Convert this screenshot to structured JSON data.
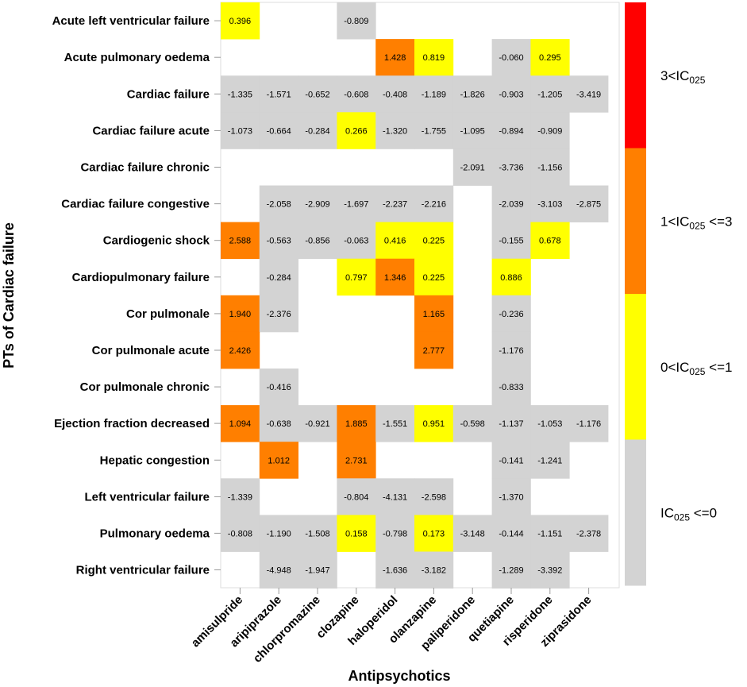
{
  "chart_data": {
    "type": "heatmap",
    "xlabel": "Antipsychotics",
    "ylabel": "PTs of Cardiac failure",
    "columns": [
      "amisulpride",
      "aripiprazole",
      "chlorpromazine",
      "clozapine",
      "haloperidol",
      "olanzapine",
      "paliperidone",
      "quetiapine",
      "risperidone",
      "ziprasidone"
    ],
    "rows": [
      "Acute left ventricular failure",
      "Acute pulmonary oedema",
      "Cardiac failure",
      "Cardiac failure acute",
      "Cardiac failure chronic",
      "Cardiac failure congestive",
      "Cardiogenic shock",
      "Cardiopulmonary failure",
      "Cor pulmonale",
      "Cor pulmonale acute",
      "Cor pulmonale chronic",
      "Ejection fraction decreased",
      "Hepatic congestion",
      "Left ventricular failure",
      "Pulmonary oedema",
      "Right ventricular failure"
    ],
    "values": [
      [
        "0.396",
        null,
        null,
        "-0.809",
        null,
        null,
        null,
        null,
        null,
        null
      ],
      [
        null,
        null,
        null,
        null,
        "1.428",
        "0.819",
        null,
        "-0.060",
        "0.295",
        null
      ],
      [
        "-1.335",
        "-1.571",
        "-0.652",
        "-0.608",
        "-0.408",
        "-1.189",
        "-1.826",
        "-0.903",
        "-1.205",
        "-3.419"
      ],
      [
        "-1.073",
        "-0.664",
        "-0.284",
        "0.266",
        "-1.320",
        "-1.755",
        "-1.095",
        "-0.894",
        "-0.909",
        null
      ],
      [
        null,
        null,
        null,
        null,
        null,
        null,
        "-2.091",
        "-3.736",
        "-1.156",
        null
      ],
      [
        null,
        "-2.058",
        "-2.909",
        "-1.697",
        "-2.237",
        "-2.216",
        null,
        "-2.039",
        "-3.103",
        "-2.875"
      ],
      [
        "2.588",
        "-0.563",
        "-0.856",
        "-0.063",
        "0.416",
        "0.225",
        null,
        "-0.155",
        "0.678",
        null
      ],
      [
        null,
        "-0.284",
        null,
        "0.797",
        "1.346",
        "0.225",
        null,
        "0.886",
        null,
        null
      ],
      [
        "1.940",
        "-2.376",
        null,
        null,
        null,
        "1.165",
        null,
        "-0.236",
        null,
        null
      ],
      [
        "2.426",
        null,
        null,
        null,
        null,
        "2.777",
        null,
        "-1.176",
        null,
        null
      ],
      [
        null,
        "-0.416",
        null,
        null,
        null,
        null,
        null,
        "-0.833",
        null,
        null
      ],
      [
        "1.094",
        "-0.638",
        "-0.921",
        "1.885",
        "-1.551",
        "0.951",
        "-0.598",
        "-1.137",
        "-1.053",
        "-1.176"
      ],
      [
        null,
        "1.012",
        null,
        "2.731",
        null,
        null,
        null,
        "-0.141",
        "-1.241",
        null
      ],
      [
        "-1.339",
        null,
        null,
        "-0.804",
        "-4.131",
        "-2.598",
        null,
        "-1.370",
        null,
        null
      ],
      [
        "-0.808",
        "-1.190",
        "-1.508",
        "0.158",
        "-0.798",
        "0.173",
        "-3.148",
        "-0.144",
        "-1.151",
        "-2.378"
      ],
      [
        null,
        "-4.948",
        "-1.947",
        null,
        "-1.636",
        "-3.182",
        null,
        "-1.289",
        "-3.392",
        null
      ]
    ],
    "legend": [
      {
        "label_main": "3<IC",
        "label_sub": "025",
        "label_tail": "",
        "color": "#ff0000",
        "min": 3,
        "max": null
      },
      {
        "label_main": "1<IC",
        "label_sub": "025",
        "label_tail": " <=3",
        "color": "#ff7f00",
        "min": 1,
        "max": 3
      },
      {
        "label_main": "0<IC",
        "label_sub": "025",
        "label_tail": " <=1",
        "color": "#ffff00",
        "min": 0,
        "max": 1
      },
      {
        "label_main": "IC",
        "label_sub": "025",
        "label_tail": " <=0",
        "color": "#d3d3d3",
        "min": null,
        "max": 0
      }
    ]
  }
}
